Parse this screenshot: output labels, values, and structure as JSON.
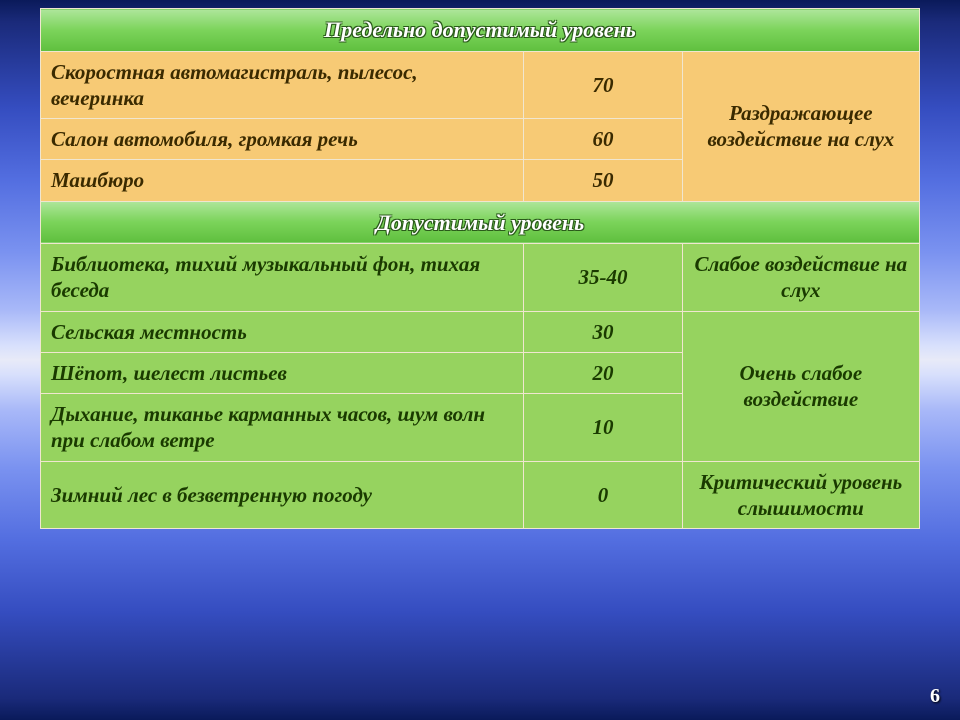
{
  "sections": {
    "maxPermissible": {
      "title": "Предельно допустимый уровень",
      "rows": [
        {
          "source": "Скоростная автомагистраль, пылесос, вечеринка",
          "value": "70"
        },
        {
          "source": "Салон автомобиля, громкая речь",
          "value": "60"
        },
        {
          "source": "Машбюро",
          "value": "50"
        }
      ],
      "effect": "Раздражающее воздействие на слух"
    },
    "permissible": {
      "title": "Допустимый уровень",
      "group1": {
        "rows": [
          {
            "source": "Библиотека, тихий музыкальный фон, тихая беседа",
            "value": "35-40"
          }
        ],
        "effect": "Слабое воздействие на слух"
      },
      "group2": {
        "rows": [
          {
            "source": "Сельская местность",
            "value": "30"
          },
          {
            "source": "Шёпот, шелест листьев",
            "value": "20"
          },
          {
            "source": "Дыхание, тиканье карманных часов, шум волн при слабом ветре",
            "value": "10"
          }
        ],
        "effect": "Очень слабое воздействие"
      },
      "group3": {
        "rows": [
          {
            "source": "Зимний лес в безветренную погоду",
            "value": "0"
          }
        ],
        "effect": "Критический уровень слышимости"
      }
    }
  },
  "pageNumber": "6",
  "colors": {
    "orange": "#f7ca75",
    "green": "#96d35f",
    "border": "#f0e6d0",
    "headerGradTop": "#aee69b",
    "headerGradBottom": "#5fbf3e"
  }
}
